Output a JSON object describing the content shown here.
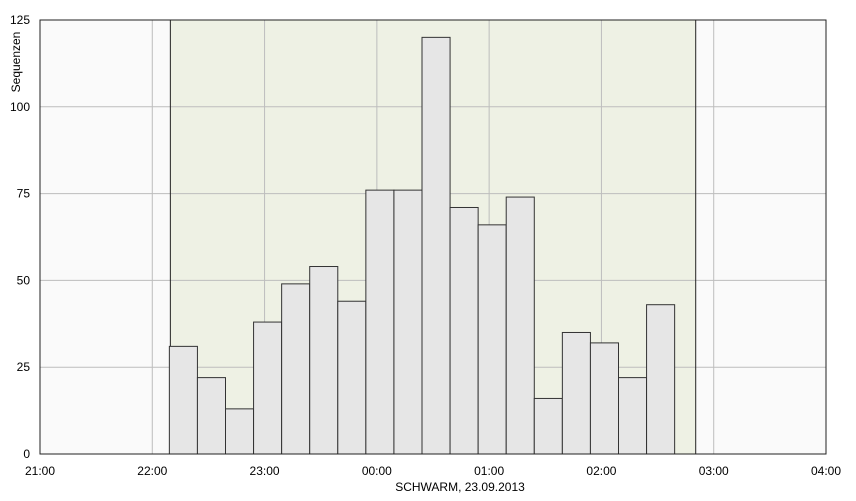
{
  "chart_data": {
    "type": "bar",
    "xlabel": "SCHWARM, 23.09.2013",
    "ylabel": "Sequenzen",
    "ylim": [
      0,
      125
    ],
    "y_ticks": [
      0,
      25,
      50,
      75,
      100,
      125
    ],
    "x_range": [
      "21:00",
      "04:00"
    ],
    "x_tick_labels": [
      "21:00",
      "22:00",
      "23:00",
      "00:00",
      "01:00",
      "02:00",
      "03:00",
      "04:00"
    ],
    "highlight_range": [
      "22:15",
      "03:00"
    ],
    "bin_minutes": 15,
    "bars": [
      {
        "start": "22:15",
        "value": 31
      },
      {
        "start": "22:30",
        "value": 22
      },
      {
        "start": "22:45",
        "value": 13
      },
      {
        "start": "23:00",
        "value": 38
      },
      {
        "start": "23:15",
        "value": 49
      },
      {
        "start": "23:30",
        "value": 54
      },
      {
        "start": "23:45",
        "value": 44
      },
      {
        "start": "00:00",
        "value": 76
      },
      {
        "start": "00:15",
        "value": 76
      },
      {
        "start": "00:30",
        "value": 120
      },
      {
        "start": "00:45",
        "value": 71
      },
      {
        "start": "01:00",
        "value": 66
      },
      {
        "start": "01:15",
        "value": 74
      },
      {
        "start": "01:30",
        "value": 16
      },
      {
        "start": "01:45",
        "value": 35
      },
      {
        "start": "02:00",
        "value": 32
      },
      {
        "start": "02:15",
        "value": 22
      },
      {
        "start": "02:30",
        "value": 43
      }
    ],
    "grid": true,
    "colors": {
      "bar_fill": "#e6e6e6",
      "bar_stroke": "#333333",
      "highlight_fill": "#eef1e4",
      "plot_bg": "#fafafa",
      "grid": "#bdbdbd"
    }
  }
}
